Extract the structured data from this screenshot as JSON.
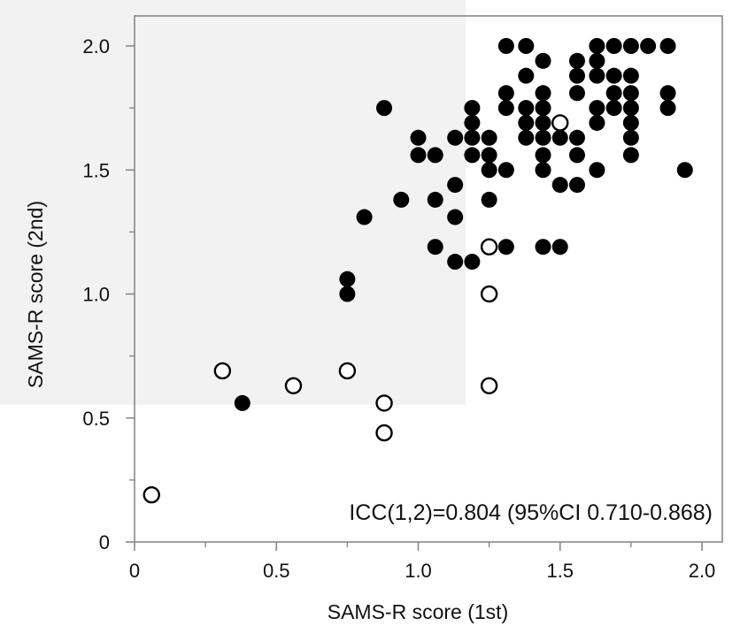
{
  "chart_data": {
    "type": "scatter",
    "xlabel": "SAMS-R score (1st)",
    "ylabel": "SAMS-R  score (2nd)",
    "xlim": [
      0,
      2.1
    ],
    "ylim": [
      0,
      2.1
    ],
    "x_ticks": [
      "0",
      "0.5",
      "1.0",
      "1.5",
      "2.0"
    ],
    "y_ticks": [
      "0",
      "0.5",
      "1.0",
      "1.5",
      "2.0"
    ],
    "x_tick_values": [
      0,
      0.5,
      1.0,
      1.5,
      2.0
    ],
    "y_tick_values": [
      0,
      0.5,
      1.0,
      1.5,
      2.0
    ],
    "grid": false,
    "annotation": "ICC(1,2)=0.804 (95%CI 0.710-0.868)",
    "series": [
      {
        "marker": "filled",
        "color": "#000000",
        "points": [
          [
            1.31,
            2.0
          ],
          [
            1.38,
            2.0
          ],
          [
            1.63,
            2.0
          ],
          [
            1.69,
            2.0
          ],
          [
            1.75,
            2.0
          ],
          [
            1.81,
            2.0
          ],
          [
            1.88,
            2.0
          ],
          [
            1.44,
            1.94
          ],
          [
            1.56,
            1.94
          ],
          [
            1.63,
            1.94
          ],
          [
            1.38,
            1.88
          ],
          [
            1.56,
            1.88
          ],
          [
            1.63,
            1.88
          ],
          [
            1.69,
            1.88
          ],
          [
            1.75,
            1.88
          ],
          [
            1.31,
            1.81
          ],
          [
            1.44,
            1.81
          ],
          [
            1.56,
            1.81
          ],
          [
            1.69,
            1.81
          ],
          [
            1.75,
            1.81
          ],
          [
            1.88,
            1.81
          ],
          [
            0.88,
            1.75
          ],
          [
            1.19,
            1.75
          ],
          [
            1.31,
            1.75
          ],
          [
            1.38,
            1.75
          ],
          [
            1.44,
            1.75
          ],
          [
            1.63,
            1.75
          ],
          [
            1.69,
            1.75
          ],
          [
            1.75,
            1.75
          ],
          [
            1.88,
            1.75
          ],
          [
            1.19,
            1.69
          ],
          [
            1.38,
            1.69
          ],
          [
            1.44,
            1.69
          ],
          [
            1.63,
            1.69
          ],
          [
            1.75,
            1.69
          ],
          [
            1.0,
            1.63
          ],
          [
            1.13,
            1.63
          ],
          [
            1.19,
            1.63
          ],
          [
            1.25,
            1.63
          ],
          [
            1.38,
            1.63
          ],
          [
            1.44,
            1.63
          ],
          [
            1.5,
            1.63
          ],
          [
            1.56,
            1.63
          ],
          [
            1.75,
            1.63
          ],
          [
            1.0,
            1.56
          ],
          [
            1.06,
            1.56
          ],
          [
            1.19,
            1.56
          ],
          [
            1.25,
            1.56
          ],
          [
            1.44,
            1.56
          ],
          [
            1.56,
            1.56
          ],
          [
            1.75,
            1.56
          ],
          [
            1.25,
            1.5
          ],
          [
            1.31,
            1.5
          ],
          [
            1.44,
            1.5
          ],
          [
            1.63,
            1.5
          ],
          [
            1.94,
            1.5
          ],
          [
            1.13,
            1.44
          ],
          [
            1.5,
            1.44
          ],
          [
            1.56,
            1.44
          ],
          [
            0.94,
            1.38
          ],
          [
            1.06,
            1.38
          ],
          [
            1.25,
            1.38
          ],
          [
            0.81,
            1.31
          ],
          [
            1.13,
            1.31
          ],
          [
            1.06,
            1.19
          ],
          [
            1.31,
            1.19
          ],
          [
            1.44,
            1.19
          ],
          [
            1.5,
            1.19
          ],
          [
            1.13,
            1.13
          ],
          [
            1.19,
            1.13
          ],
          [
            0.75,
            1.06
          ],
          [
            0.75,
            1.0
          ],
          [
            0.38,
            0.56
          ]
        ]
      },
      {
        "marker": "open",
        "color": "#000000",
        "points": [
          [
            1.5,
            1.69
          ],
          [
            1.25,
            1.19
          ],
          [
            1.25,
            1.0
          ],
          [
            0.31,
            0.69
          ],
          [
            0.75,
            0.69
          ],
          [
            0.56,
            0.63
          ],
          [
            1.25,
            0.63
          ],
          [
            0.88,
            0.56
          ],
          [
            0.88,
            0.44
          ],
          [
            0.06,
            0.19
          ]
        ]
      }
    ]
  }
}
